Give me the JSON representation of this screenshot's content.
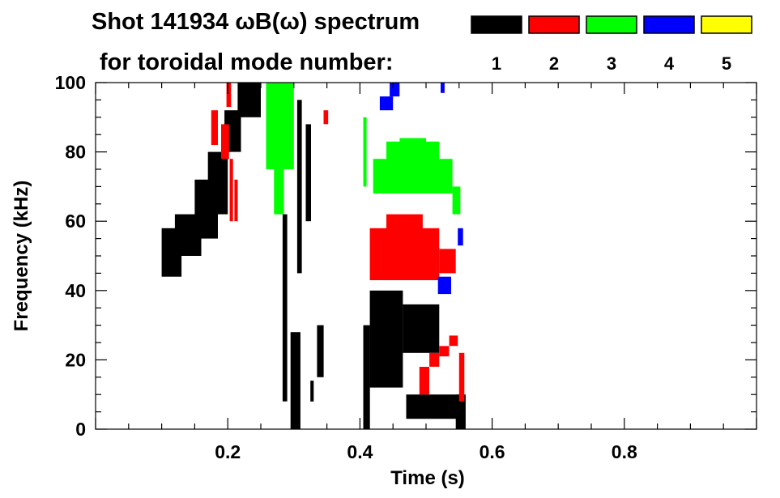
{
  "chart_data": {
    "type": "heatmap",
    "title_line1": "Shot 141934 ωB(ω) spectrum",
    "title_line2": "for toroidal mode number:",
    "xlabel": "Time (s)",
    "ylabel": "Frequency (kHz)",
    "xlim": [
      0.0,
      1.0
    ],
    "ylim": [
      0,
      100
    ],
    "xticks": [
      0.2,
      0.4,
      0.6,
      0.8
    ],
    "xtick_labels": [
      "0.2",
      "0.4",
      "0.6",
      "0.8"
    ],
    "yticks": [
      0,
      20,
      40,
      60,
      80,
      100
    ],
    "ytick_labels": [
      "0",
      "20",
      "40",
      "60",
      "80",
      "100"
    ],
    "grid": false,
    "legend_position": "top-right",
    "legend": [
      {
        "label": "1",
        "color": "#000000"
      },
      {
        "label": "2",
        "color": "#ff0000"
      },
      {
        "label": "3",
        "color": "#00ff00"
      },
      {
        "label": "4",
        "color": "#0000ff"
      },
      {
        "label": "5",
        "color": "#ffff00"
      }
    ],
    "series": [
      {
        "mode": "1",
        "color": "#000000",
        "regions": [
          {
            "t": [
              0.1,
              0.13
            ],
            "f": [
              44,
              58
            ]
          },
          {
            "t": [
              0.12,
              0.16
            ],
            "f": [
              50,
              62
            ]
          },
          {
            "t": [
              0.15,
              0.185
            ],
            "f": [
              55,
              72
            ]
          },
          {
            "t": [
              0.17,
              0.2
            ],
            "f": [
              62,
              80
            ]
          },
          {
            "t": [
              0.195,
              0.22
            ],
            "f": [
              80,
              92
            ]
          },
          {
            "t": [
              0.215,
              0.25
            ],
            "f": [
              90,
              100
            ]
          },
          {
            "t": [
              0.283,
              0.29
            ],
            "f": [
              8,
              62
            ]
          },
          {
            "t": [
              0.295,
              0.31
            ],
            "f": [
              0,
              28
            ]
          },
          {
            "t": [
              0.305,
              0.312
            ],
            "f": [
              45,
              95
            ]
          },
          {
            "t": [
              0.318,
              0.326
            ],
            "f": [
              60,
              88
            ]
          },
          {
            "t": [
              0.335,
              0.345
            ],
            "f": [
              15,
              30
            ]
          },
          {
            "t": [
              0.325,
              0.33
            ],
            "f": [
              8,
              14
            ]
          },
          {
            "t": [
              0.405,
              0.415
            ],
            "f": [
              0,
              30
            ]
          },
          {
            "t": [
              0.415,
              0.465
            ],
            "f": [
              12,
              40
            ]
          },
          {
            "t": [
              0.465,
              0.52
            ],
            "f": [
              22,
              36
            ]
          },
          {
            "t": [
              0.47,
              0.55
            ],
            "f": [
              3,
              10
            ]
          },
          {
            "t": [
              0.545,
              0.56
            ],
            "f": [
              0,
              10
            ]
          }
        ]
      },
      {
        "mode": "2",
        "color": "#ff0000",
        "regions": [
          {
            "t": [
              0.175,
              0.185
            ],
            "f": [
              82,
              92
            ]
          },
          {
            "t": [
              0.19,
              0.202
            ],
            "f": [
              78,
              88
            ]
          },
          {
            "t": [
              0.198,
              0.205
            ],
            "f": [
              93,
              100
            ]
          },
          {
            "t": [
              0.203,
              0.208
            ],
            "f": [
              60,
              78
            ]
          },
          {
            "t": [
              0.21,
              0.215
            ],
            "f": [
              60,
              72
            ]
          },
          {
            "t": [
              0.345,
              0.352
            ],
            "f": [
              88,
              92
            ]
          },
          {
            "t": [
              0.415,
              0.52
            ],
            "f": [
              43,
              58
            ]
          },
          {
            "t": [
              0.44,
              0.495
            ],
            "f": [
              57,
              62
            ]
          },
          {
            "t": [
              0.52,
              0.545
            ],
            "f": [
              45,
              52
            ]
          },
          {
            "t": [
              0.49,
              0.505
            ],
            "f": [
              10,
              18
            ]
          },
          {
            "t": [
              0.505,
              0.52
            ],
            "f": [
              18,
              22
            ]
          },
          {
            "t": [
              0.52,
              0.535
            ],
            "f": [
              21,
              24
            ]
          },
          {
            "t": [
              0.535,
              0.548
            ],
            "f": [
              24,
              27
            ]
          },
          {
            "t": [
              0.55,
              0.558
            ],
            "f": [
              8,
              22
            ]
          }
        ]
      },
      {
        "mode": "3",
        "color": "#00ff00",
        "regions": [
          {
            "t": [
              0.258,
              0.3
            ],
            "f": [
              75,
              100
            ]
          },
          {
            "t": [
              0.27,
              0.285
            ],
            "f": [
              62,
              75
            ]
          },
          {
            "t": [
              0.405,
              0.41
            ],
            "f": [
              70,
              90
            ]
          },
          {
            "t": [
              0.42,
              0.54
            ],
            "f": [
              68,
              78
            ]
          },
          {
            "t": [
              0.44,
              0.52
            ],
            "f": [
              76,
              83
            ]
          },
          {
            "t": [
              0.46,
              0.5
            ],
            "f": [
              80,
              84
            ]
          },
          {
            "t": [
              0.54,
              0.552
            ],
            "f": [
              62,
              70
            ]
          }
        ]
      },
      {
        "mode": "4",
        "color": "#0000ff",
        "regions": [
          {
            "t": [
              0.43,
              0.45
            ],
            "f": [
              92,
              96
            ]
          },
          {
            "t": [
              0.445,
              0.46
            ],
            "f": [
              96,
              100
            ]
          },
          {
            "t": [
              0.518,
              0.538
            ],
            "f": [
              39,
              44
            ]
          },
          {
            "t": [
              0.548,
              0.556
            ],
            "f": [
              53,
              58
            ]
          },
          {
            "t": [
              0.522,
              0.528
            ],
            "f": [
              97,
              100
            ]
          }
        ]
      },
      {
        "mode": "5",
        "color": "#ffff00",
        "regions": []
      }
    ]
  }
}
